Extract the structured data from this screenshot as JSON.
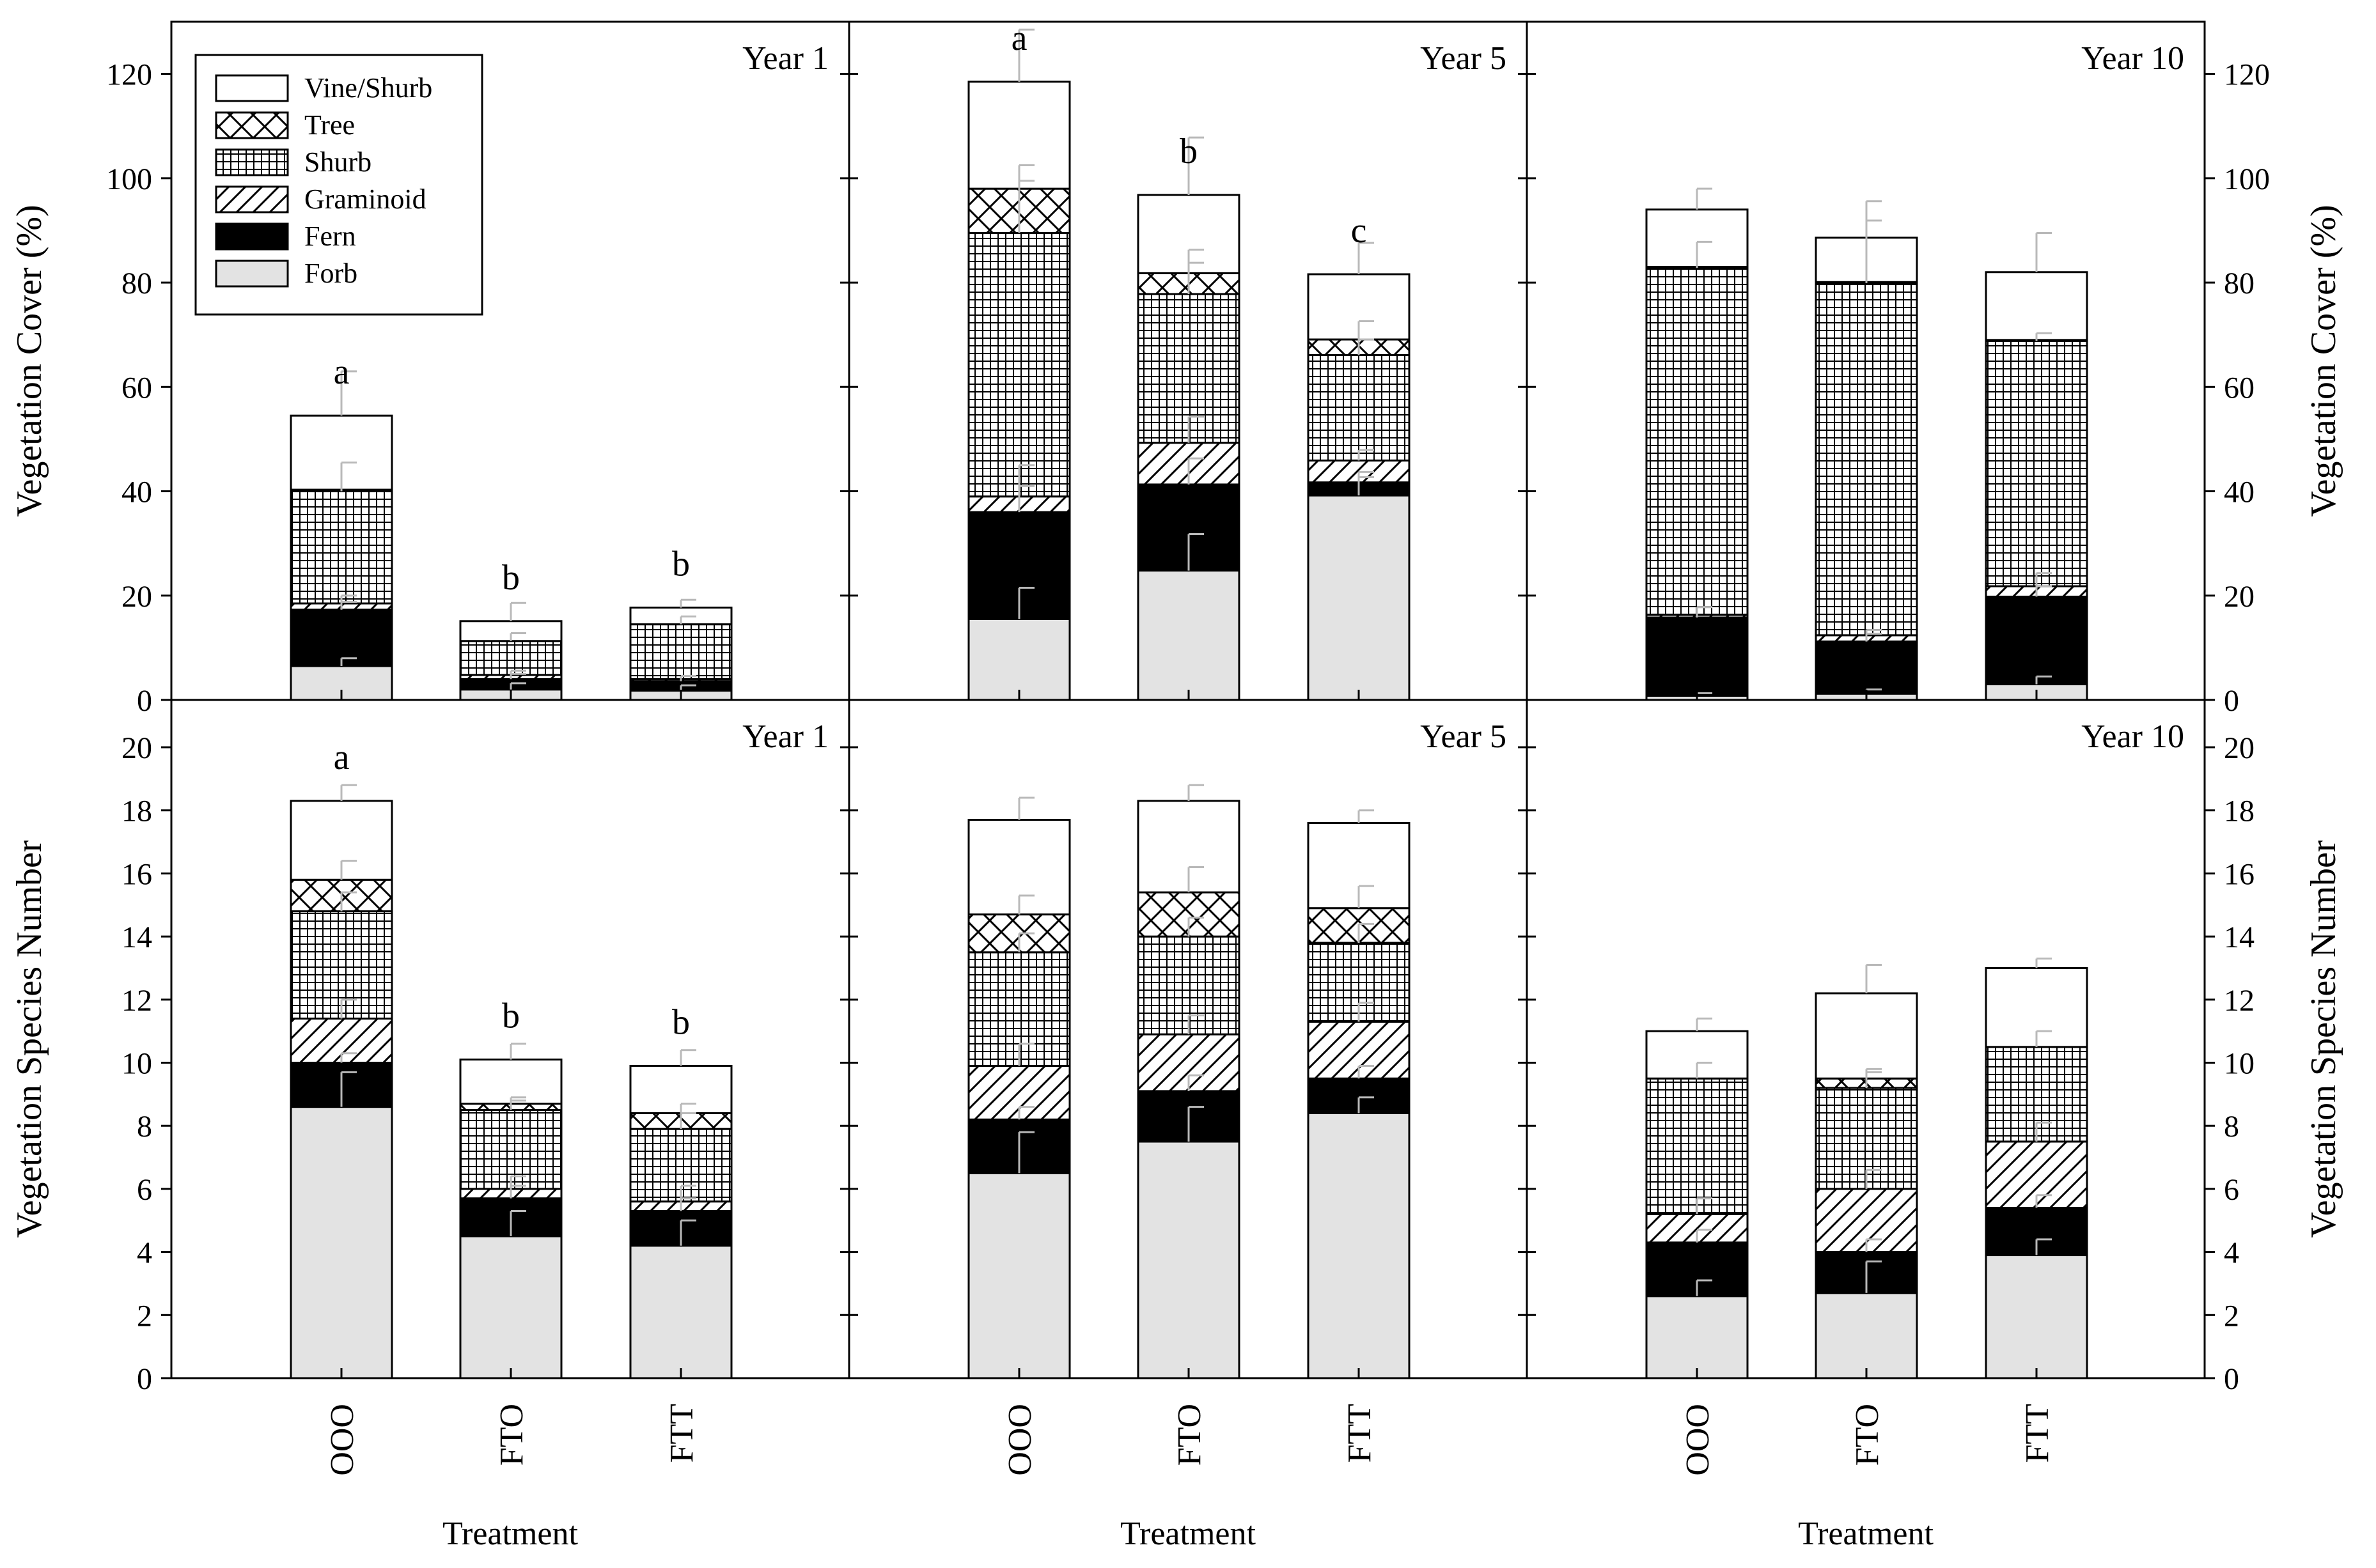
{
  "chart_data": {
    "type": "bar",
    "stacked": true,
    "categories": [
      "OOO",
      "FTO",
      "FTT"
    ],
    "xlabel": "Treatment",
    "colors": {
      "frame": "#000000",
      "forb": "#e3e3e3",
      "fern": "#000000",
      "bar_stroke": "#000000",
      "error_bar": "#b9b9b9",
      "background": "#ffffff"
    },
    "legend": {
      "position": "top-left",
      "entries": [
        {
          "key": "vine",
          "label": "Vine/Shurb"
        },
        {
          "key": "tree",
          "label": "Tree"
        },
        {
          "key": "shrub",
          "label": "Shurb"
        },
        {
          "key": "graminoid",
          "label": "Graminoid"
        },
        {
          "key": "fern",
          "label": "Fern"
        },
        {
          "key": "forb",
          "label": "Forb"
        }
      ]
    },
    "series_order": [
      "forb",
      "fern",
      "graminoid",
      "shrub",
      "tree",
      "vine"
    ],
    "rows": [
      {
        "id": "cover",
        "ylabel": "Vegetation Cover (%)",
        "ylim": [
          0,
          130
        ],
        "ticks": [
          0,
          20,
          40,
          60,
          80,
          100,
          120
        ],
        "panels": [
          {
            "title": "Year 1",
            "letters": [
              "a",
              "b",
              "b"
            ],
            "bars": [
              {
                "forb": 6.5,
                "fern": 10.8,
                "graminoid": 1.2,
                "shrub": 21.5,
                "tree": 0.3,
                "vine": 14.2,
                "errors": [
                  1.5,
                  1.5,
                  1.5,
                  5.5,
                  0,
                  8.5
                ]
              },
              {
                "forb": 2.0,
                "fern": 2.0,
                "graminoid": 0.8,
                "shrub": 6.5,
                "tree": 0,
                "vine": 3.8,
                "errors": [
                  1.2,
                  1.0,
                  0.8,
                  1.5,
                  0,
                  3.5
                ]
              },
              {
                "forb": 1.8,
                "fern": 1.8,
                "graminoid": 0.4,
                "shrub": 10.5,
                "tree": 0,
                "vine": 3.2,
                "errors": [
                  1.0,
                  1.0,
                  0.6,
                  1.5,
                  0,
                  1.5
                ]
              }
            ]
          },
          {
            "title": "Year 5",
            "letters": [
              "a",
              "b",
              "c"
            ],
            "bars": [
              {
                "forb": 15.5,
                "fern": 20.5,
                "graminoid": 3.0,
                "shrub": 50.5,
                "tree": 8.5,
                "vine": 20.5,
                "errors": [
                  6.0,
                  5.0,
                  6.0,
                  10.0,
                  4.5,
                  10.0
                ]
              },
              {
                "forb": 24.8,
                "fern": 16.5,
                "graminoid": 8.0,
                "shrub": 28.5,
                "tree": 4.0,
                "vine": 15.0,
                "errors": [
                  7.0,
                  5.0,
                  5.0,
                  6.0,
                  4.5,
                  11.0
                ]
              },
              {
                "forb": 39.2,
                "fern": 2.5,
                "graminoid": 4.2,
                "shrub": 20.2,
                "tree": 3.0,
                "vine": 12.5,
                "errors": [
                  3.5,
                  2.0,
                  2.0,
                  3.0,
                  3.5,
                  6.0
                ]
              }
            ]
          },
          {
            "title": "Year 10",
            "letters": [
              "",
              "",
              ""
            ],
            "bars": [
              {
                "forb": 0.8,
                "fern": 15.0,
                "graminoid": 0.5,
                "shrub": 66.5,
                "tree": 0.2,
                "vine": 11.0,
                "errors": [
                  0.5,
                  2.0,
                  1.5,
                  5.0,
                  0,
                  4.0
                ]
              },
              {
                "forb": 1.2,
                "fern": 10.0,
                "graminoid": 1.2,
                "shrub": 67.5,
                "tree": 0.2,
                "vine": 8.5,
                "errors": [
                  0.8,
                  1.5,
                  1.0,
                  12.0,
                  0,
                  7.0
                ]
              },
              {
                "forb": 3.0,
                "fern": 16.8,
                "graminoid": 2.0,
                "shrub": 47.0,
                "tree": 0.2,
                "vine": 13.0,
                "errors": [
                  1.5,
                  2.0,
                  2.5,
                  1.5,
                  0,
                  7.5
                ]
              }
            ]
          }
        ]
      },
      {
        "id": "species",
        "ylabel": "Vegetation Species Number",
        "ylim": [
          0,
          21.5
        ],
        "ticks": [
          0,
          2,
          4,
          6,
          8,
          10,
          12,
          14,
          16,
          18,
          20
        ],
        "panels": [
          {
            "title": "Year 1",
            "letters": [
              "a",
              "b",
              "b"
            ],
            "bars": [
              {
                "forb": 8.6,
                "fern": 1.4,
                "graminoid": 1.4,
                "shrub": 3.4,
                "tree": 1.0,
                "vine": 2.5,
                "errors": [
                  1.1,
                  0.3,
                  0.6,
                  0.6,
                  0.6,
                  0.5
                ]
              },
              {
                "forb": 4.5,
                "fern": 1.2,
                "graminoid": 0.3,
                "shrub": 2.5,
                "tree": 0.2,
                "vine": 1.4,
                "errors": [
                  0.8,
                  0.4,
                  0.4,
                  0.3,
                  0.2,
                  0.5
                ]
              },
              {
                "forb": 4.2,
                "fern": 1.1,
                "graminoid": 0.3,
                "shrub": 2.3,
                "tree": 0.5,
                "vine": 1.5,
                "errors": [
                  0.8,
                  0.4,
                  0.5,
                  0.5,
                  0.3,
                  0.5
                ]
              }
            ]
          },
          {
            "title": "Year 5",
            "letters": [
              "",
              "",
              ""
            ],
            "bars": [
              {
                "forb": 6.5,
                "fern": 1.7,
                "graminoid": 1.7,
                "shrub": 3.6,
                "tree": 1.2,
                "vine": 3.0,
                "errors": [
                  1.3,
                  0.4,
                  0.7,
                  0.6,
                  0.6,
                  0.7
                ]
              },
              {
                "forb": 7.5,
                "fern": 1.6,
                "graminoid": 1.8,
                "shrub": 3.1,
                "tree": 1.4,
                "vine": 2.9,
                "errors": [
                  1.1,
                  0.5,
                  0.6,
                  0.6,
                  0.8,
                  0.5
                ]
              },
              {
                "forb": 8.4,
                "fern": 1.1,
                "graminoid": 1.8,
                "shrub": 2.5,
                "tree": 1.1,
                "vine": 2.7,
                "errors": [
                  0.5,
                  0.4,
                  0.6,
                  0.6,
                  0.7,
                  0.4
                ]
              }
            ]
          },
          {
            "title": "Year 10",
            "letters": [
              "",
              "",
              ""
            ],
            "bars": [
              {
                "forb": 2.6,
                "fern": 1.7,
                "graminoid": 0.9,
                "shrub": 4.3,
                "tree": 0,
                "vine": 1.5,
                "errors": [
                  0.5,
                  0.4,
                  0.5,
                  0.5,
                  0,
                  0.4
                ]
              },
              {
                "forb": 2.7,
                "fern": 1.3,
                "graminoid": 2.0,
                "shrub": 3.2,
                "tree": 0.3,
                "vine": 2.7,
                "errors": [
                  1.0,
                  0.4,
                  0.6,
                  0.5,
                  0.3,
                  0.9
                ]
              },
              {
                "forb": 3.9,
                "fern": 1.5,
                "graminoid": 2.1,
                "shrub": 3.0,
                "tree": 0,
                "vine": 2.5,
                "errors": [
                  0.5,
                  0.4,
                  0.6,
                  0.5,
                  0,
                  0.3
                ]
              }
            ]
          }
        ]
      }
    ]
  }
}
